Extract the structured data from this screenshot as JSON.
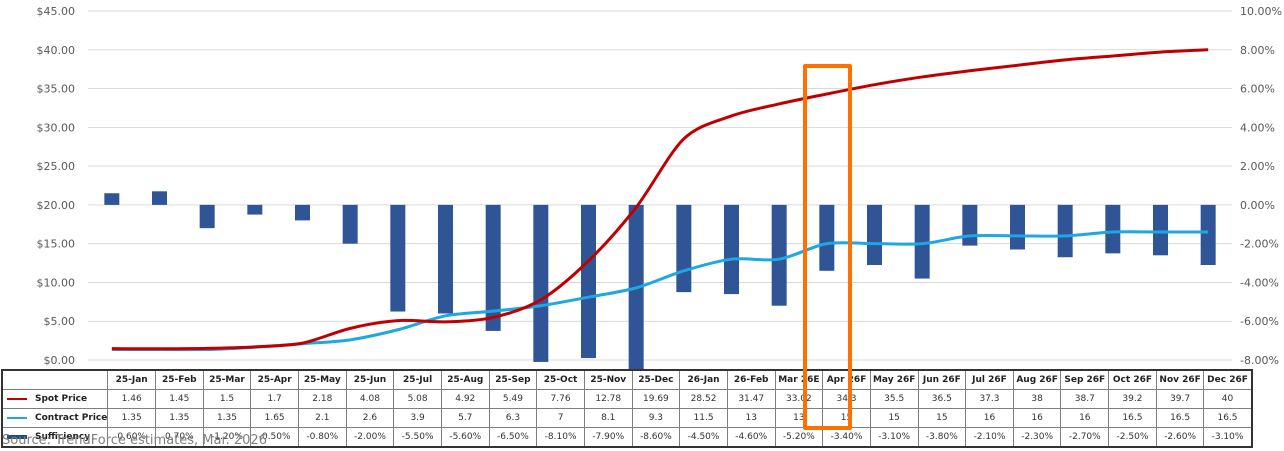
{
  "chart_data": {
    "type": "line+bar",
    "title": "",
    "categories": [
      "25-Jan",
      "25-Feb",
      "25-Mar",
      "25-Apr",
      "25-May",
      "25-Jun",
      "25-Jul",
      "25-Aug",
      "25-Sep",
      "25-Oct",
      "25-Nov",
      "25-Dec",
      "26-Jan",
      "26-Feb",
      "Mar 26E",
      "Apr 26F",
      "May 26F",
      "Jun 26F",
      "Jul 26F",
      "Aug 26F",
      "Sep 26F",
      "Oct 26F",
      "Nov 26F",
      "Dec 26F"
    ],
    "series": [
      {
        "name": "Spot Price",
        "type": "line",
        "axis": "left",
        "color": "#c00000",
        "values": [
          1.46,
          1.45,
          1.5,
          1.7,
          2.18,
          4.08,
          5.08,
          4.92,
          5.49,
          7.76,
          12.78,
          19.69,
          28.52,
          31.47,
          33.02,
          34.3,
          35.5,
          36.5,
          37.3,
          38,
          38.7,
          39.2,
          39.7,
          40
        ],
        "display": [
          "1.46",
          "1.45",
          "1.5",
          "1.7",
          "2.18",
          "4.08",
          "5.08",
          "4.92",
          "5.49",
          "7.76",
          "12.78",
          "19.69",
          "28.52",
          "31.47",
          "33.02",
          "34.3",
          "35.5",
          "36.5",
          "37.3",
          "38",
          "38.7",
          "39.2",
          "39.7",
          "40"
        ]
      },
      {
        "name": "Contract Price",
        "type": "line",
        "axis": "left",
        "color": "#1ea7e1",
        "values": [
          1.35,
          1.35,
          1.35,
          1.65,
          2.1,
          2.6,
          3.9,
          5.7,
          6.3,
          7,
          8.1,
          9.3,
          11.5,
          13,
          13,
          15,
          15,
          15,
          16,
          16,
          16,
          16.5,
          16.5,
          16.5
        ],
        "display": [
          "1.35",
          "1.35",
          "1.35",
          "1.65",
          "2.1",
          "2.6",
          "3.9",
          "5.7",
          "6.3",
          "7",
          "8.1",
          "9.3",
          "11.5",
          "13",
          "13",
          "15",
          "15",
          "15",
          "16",
          "16",
          "16",
          "16.5",
          "16.5",
          "16.5"
        ]
      },
      {
        "name": "Sufficiency",
        "type": "bar",
        "axis": "right",
        "color": "#2f5597",
        "values": [
          0.6,
          0.7,
          -1.2,
          -0.5,
          -0.8,
          -2.0,
          -5.5,
          -5.6,
          -6.5,
          -8.1,
          -7.9,
          -8.6,
          -4.5,
          -4.6,
          -5.2,
          -3.4,
          -3.1,
          -3.8,
          -2.1,
          -2.3,
          -2.7,
          -2.5,
          -2.6,
          -3.1
        ],
        "display": [
          "0.60%",
          "0.70%",
          "-1.20%",
          "-0.50%",
          "-0.80%",
          "-2.00%",
          "-5.50%",
          "-5.60%",
          "-6.50%",
          "-8.10%",
          "-7.90%",
          "-8.60%",
          "-4.50%",
          "-4.60%",
          "-5.20%",
          "-3.40%",
          "-3.10%",
          "-3.80%",
          "-2.10%",
          "-2.30%",
          "-2.70%",
          "-2.50%",
          "-2.60%",
          "-3.10%"
        ]
      }
    ],
    "left_axis": {
      "ylim": [
        0,
        45
      ],
      "ticks": [
        "$0.00",
        "$5.00",
        "$10.00",
        "$15.00",
        "$20.00",
        "$25.00",
        "$30.00",
        "$35.00",
        "$40.00",
        "$45.00"
      ],
      "tick_values": [
        0,
        5,
        10,
        15,
        20,
        25,
        30,
        35,
        40,
        45
      ]
    },
    "right_axis": {
      "ylim": [
        -8,
        10
      ],
      "ticks": [
        "-8.00%",
        "-6.00%",
        "-4.00%",
        "-2.00%",
        "0.00%",
        "2.00%",
        "4.00%",
        "6.00%",
        "8.00%",
        "10.00%"
      ],
      "tick_values": [
        -8,
        -6,
        -4,
        -2,
        0,
        2,
        4,
        6,
        8,
        10
      ]
    },
    "grid": true,
    "legend": "data-table-bottom",
    "highlight_category": "Apr 26F",
    "highlight_color": "#ff7000"
  },
  "source": "Source: TrendForce estimates, Mar. 2026"
}
